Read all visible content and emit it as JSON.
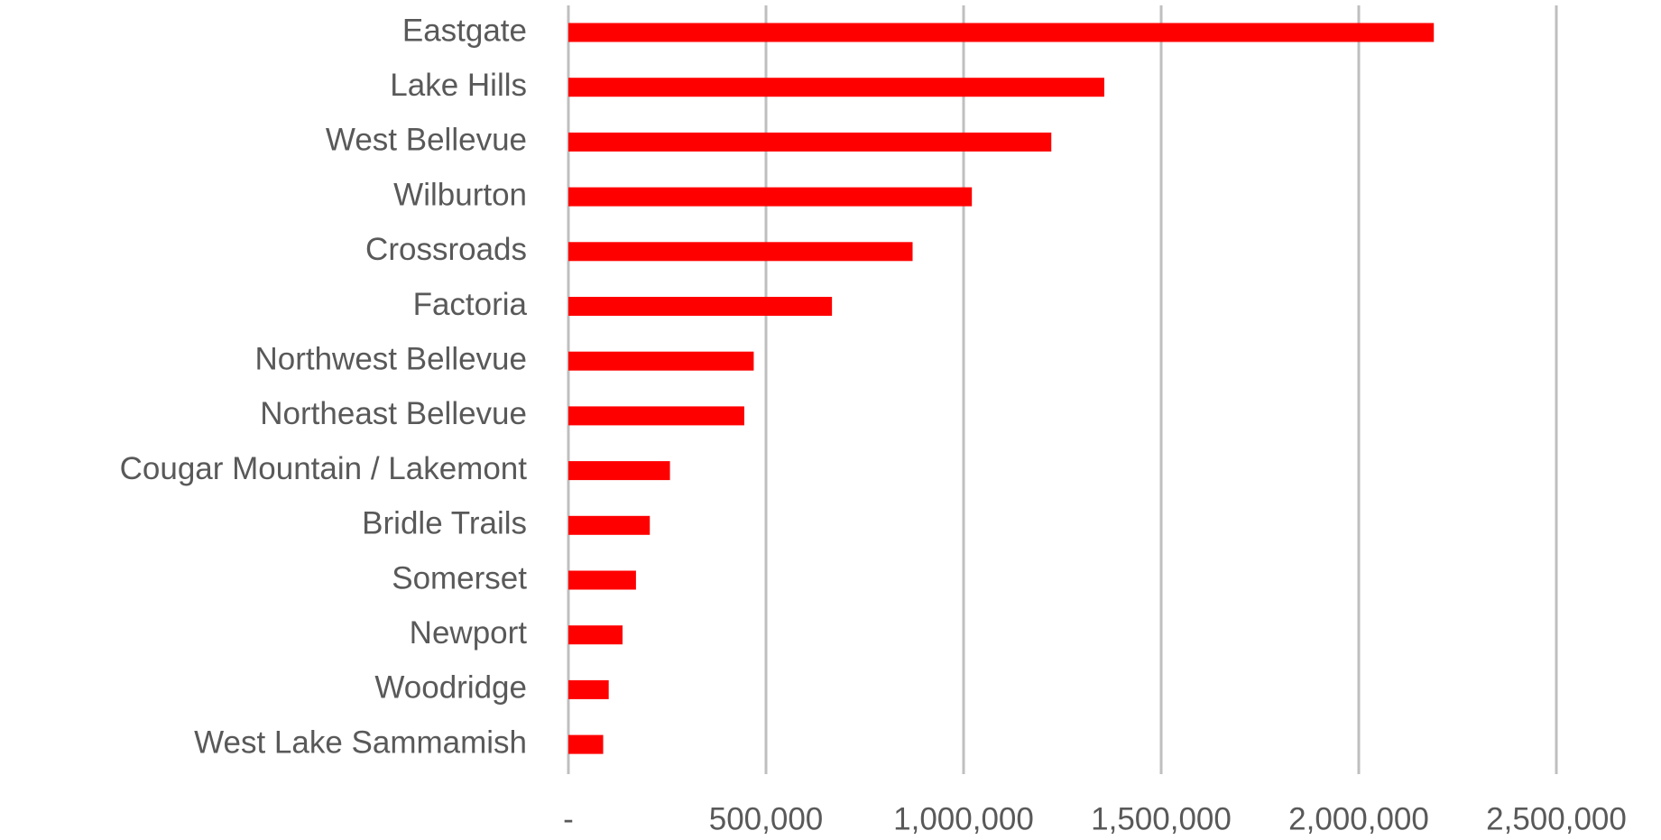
{
  "chart_data": {
    "type": "barh",
    "categories": [
      "Eastgate",
      "Lake Hills",
      "West Bellevue",
      "Wilburton",
      "Crossroads",
      "Factoria",
      "Northwest Bellevue",
      "Northeast Bellevue",
      "Cougar Mountain / Lakemont",
      "Bridle Trails",
      "Somerset",
      "Newport",
      "Woodridge",
      "West Lake Sammamish"
    ],
    "values": [
      2190000,
      1356000,
      1222000,
      1021000,
      871000,
      667000,
      469000,
      445000,
      257000,
      206000,
      171000,
      137000,
      102000,
      88000
    ],
    "color": "#ff0000",
    "xlim": [
      0,
      2500000
    ],
    "xticks": [
      {
        "value": 0,
        "label": "-"
      },
      {
        "value": 500000,
        "label": "500,000"
      },
      {
        "value": 1000000,
        "label": "1,000,000"
      },
      {
        "value": 1500000,
        "label": "1,500,000"
      },
      {
        "value": 2000000,
        "label": "2,000,000"
      },
      {
        "value": 2500000,
        "label": "2,500,000"
      }
    ],
    "grid": true
  }
}
